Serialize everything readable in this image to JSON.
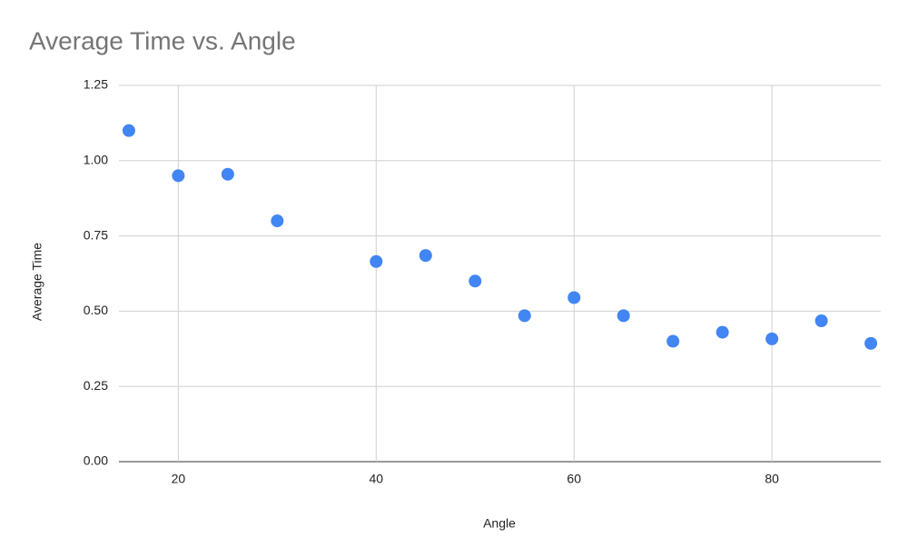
{
  "chart_data": {
    "type": "scatter",
    "title": "Average Time vs. Angle",
    "x_label": "Angle",
    "y_label": "Average Time",
    "series": [
      {
        "name": "Average Time",
        "color": "#4285f4",
        "x": [
          15,
          20,
          25,
          30,
          40,
          45,
          50,
          55,
          60,
          65,
          70,
          75,
          80,
          85,
          90
        ],
        "values": [
          1.1,
          0.95,
          0.955,
          0.8,
          0.665,
          0.685,
          0.6,
          0.485,
          0.545,
          0.485,
          0.4,
          0.43,
          0.408,
          0.468,
          0.393
        ]
      }
    ],
    "xlim": [
      14,
      91
    ],
    "xticks": [
      20,
      40,
      60,
      80
    ],
    "ylim": [
      0,
      1.25
    ],
    "yticks": [
      {
        "value": 0,
        "label": "0.00"
      },
      0.25,
      {
        "value": 0.5,
        "label": "0.50"
      },
      0.75,
      {
        "value": 1,
        "label": "1.00"
      },
      1.25
    ],
    "grid": true
  }
}
